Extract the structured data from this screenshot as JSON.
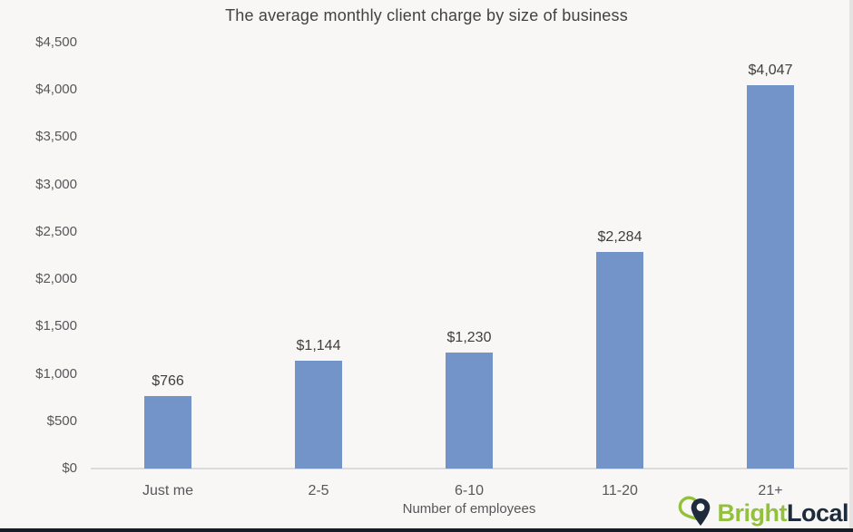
{
  "chart_data": {
    "type": "bar",
    "title": "The average monthly client charge by size of business",
    "xlabel": "Number of employees",
    "ylabel": "",
    "categories": [
      "Just me",
      "2-5",
      "6-10",
      "11-20",
      "21+"
    ],
    "values": [
      766,
      1144,
      1230,
      2284,
      4047
    ],
    "value_labels": [
      "$766",
      "$1,144",
      "$1,230",
      "$2,284",
      "$4,047"
    ],
    "y_ticks": [
      "$0",
      "$500",
      "$1,000",
      "$1,500",
      "$2,000",
      "$2,500",
      "$3,000",
      "$3,500",
      "$4,000",
      "$4,500"
    ],
    "y_tick_values": [
      0,
      500,
      1000,
      1500,
      2000,
      2500,
      3000,
      3500,
      4000,
      4500
    ],
    "ylim": [
      0,
      4500
    ],
    "grid": false,
    "legend": "none",
    "bar_color": "#7394c9"
  },
  "branding": {
    "logo_part_1": "Bright",
    "logo_part_2": "Local",
    "pin_icon": "map-pin-icon",
    "green": "#93c13d",
    "navy": "#1e2b3a"
  },
  "colors": {
    "background": "#f8f7f5",
    "axis_line": "#dbdbd8",
    "title_text": "#424242",
    "tick_text": "#57575b",
    "bottom_bar": "#141d27"
  }
}
